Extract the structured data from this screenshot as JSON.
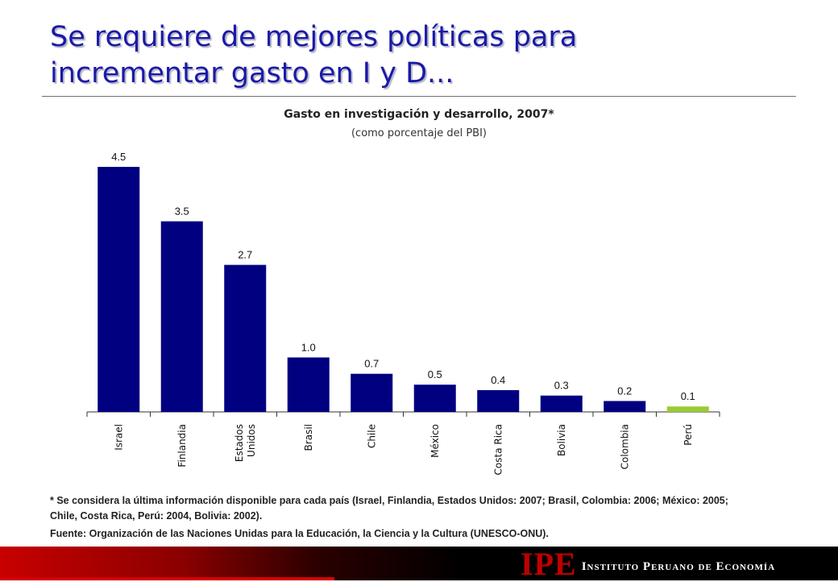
{
  "slide": {
    "title_line1": "Se requiere de mejores políticas para",
    "title_line2": "incrementar gasto en I y D...",
    "footnote": "* Se considera la última información disponible para cada país (Israel, Finlandia, Estados Unidos: 2007; Brasil, Colombia: 2006; México: 2005; Chile, Costa Rica, Perú: 2004, Bolivia: 2002).",
    "source": "Fuente: Organización de las Naciones Unidas para la Educación, la Ciencia y  la Cultura (UNESCO-ONU).",
    "logo_mark": "IPE",
    "logo_name": "Instituto Peruano de Economía"
  },
  "chart_data": {
    "type": "bar",
    "title": "Gasto en investigación y desarrollo, 2007*",
    "subtitle": "(como porcentaje del PBI)",
    "categories": [
      "Israel",
      "Finlandia",
      "Estados Unidos",
      "Brasil",
      "Chile",
      "México",
      "Costa Rica",
      "Bolivia",
      "Colombia",
      "Perú"
    ],
    "category_labels": [
      [
        "Israel"
      ],
      [
        "Finlandia"
      ],
      [
        "Estados",
        "Unidos"
      ],
      [
        "Brasil"
      ],
      [
        "Chile"
      ],
      [
        "México"
      ],
      [
        "Costa Rica"
      ],
      [
        "Bolivia"
      ],
      [
        "Colombia"
      ],
      [
        "Perú"
      ]
    ],
    "values": [
      4.5,
      3.5,
      2.7,
      1.0,
      0.7,
      0.5,
      0.4,
      0.3,
      0.2,
      0.1
    ],
    "data_labels": [
      "4.5",
      "3.5",
      "2.7",
      "1.0",
      "0.7",
      "0.5",
      "0.4",
      "0.3",
      "0.2",
      "0.1"
    ],
    "ylim": [
      0,
      4.5
    ],
    "grid": false,
    "legend": "none",
    "colors": {
      "bar": "#000080",
      "highlight": "#99cc33",
      "highlight_category": "Perú",
      "axis": "#333333"
    }
  }
}
